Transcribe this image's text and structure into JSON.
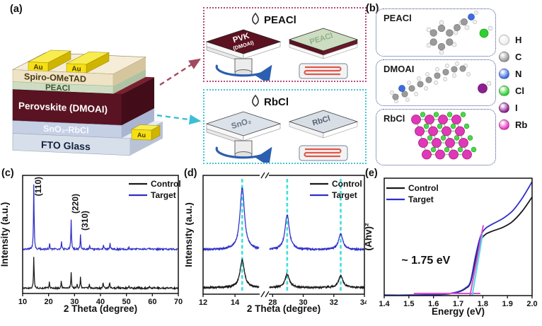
{
  "panel_a": {
    "label": "(a)",
    "device": {
      "au": "Au",
      "au_pad": "Au",
      "spiro": "Spiro-OMeTAD",
      "peacl": "PEACl",
      "perovskite": "Perovskite (DMOAI)",
      "sno2": "SnO₂-RbCl",
      "fto": "FTO Glass"
    },
    "top_process": {
      "drop": "PEACl",
      "substrate": "PVK",
      "substrate2": "(DMOAI)",
      "result": "PEACl"
    },
    "bottom_process": {
      "drop": "RbCl",
      "substrate": "SnO₂",
      "result": "RbCl"
    }
  },
  "panel_b": {
    "label": "(b)",
    "boxes": [
      {
        "title": "PEACl"
      },
      {
        "title": "DMOAI"
      },
      {
        "title": "RbCl"
      }
    ],
    "legend": [
      {
        "label": "H",
        "color": "#ededed"
      },
      {
        "label": "C",
        "color": "#979797"
      },
      {
        "label": "N",
        "color": "#3c6ce0"
      },
      {
        "label": "Cl",
        "color": "#2fd02f"
      },
      {
        "label": "I",
        "color": "#8d1f92"
      },
      {
        "label": "Rb",
        "color": "#e436bd"
      }
    ]
  },
  "chart_data": [
    {
      "id": "c",
      "panel_label": "(c)",
      "type": "line",
      "subtype": "xrd",
      "xlabel": "2 Theta (degree)",
      "ylabel": "Intensity (a.u.)",
      "xlim": [
        10,
        70
      ],
      "xticks": [
        10,
        20,
        30,
        40,
        50,
        60,
        70
      ],
      "legend": [
        "Control",
        "Target"
      ],
      "colors": {
        "Control": "#1a1a1a",
        "Target": "#2f2fc8"
      },
      "annotations": [
        {
          "text": "(110)",
          "two_theta": 14.3
        },
        {
          "text": "(220)",
          "two_theta": 28.7
        },
        {
          "text": "(310)",
          "two_theta": 32.3
        }
      ],
      "series": [
        {
          "name": "Control",
          "baseline": 0.045,
          "peaks": [
            [
              14.3,
              0.27
            ],
            [
              20.3,
              0.05
            ],
            [
              24.9,
              0.06
            ],
            [
              28.7,
              0.14
            ],
            [
              31.0,
              0.03
            ],
            [
              32.3,
              0.1
            ],
            [
              35.7,
              0.03
            ],
            [
              41.0,
              0.045
            ],
            [
              43.5,
              0.045
            ],
            [
              46.8,
              0.015
            ],
            [
              51.0,
              0.02
            ],
            [
              54.8,
              0.01
            ],
            [
              58.8,
              0.012
            ]
          ]
        },
        {
          "name": "Target",
          "baseline": 0.375,
          "peaks": [
            [
              14.3,
              0.56
            ],
            [
              20.4,
              0.05
            ],
            [
              25.0,
              0.06
            ],
            [
              28.7,
              0.25
            ],
            [
              32.3,
              0.12
            ],
            [
              35.8,
              0.03
            ],
            [
              41.2,
              0.04
            ],
            [
              43.7,
              0.05
            ],
            [
              51.0,
              0.02
            ],
            [
              58.8,
              0.01
            ]
          ]
        }
      ]
    },
    {
      "id": "d",
      "panel_label": "(d)",
      "type": "line",
      "subtype": "xrd",
      "axis_break": true,
      "xlabel": "2 Theta (degree)",
      "ylabel": "Intensity (a.u.)",
      "segments": [
        {
          "range": [
            12,
            15.5
          ],
          "ticks": [
            12,
            14
          ]
        },
        {
          "range": [
            27.8,
            34
          ],
          "ticks": [
            28,
            30,
            32,
            34
          ]
        }
      ],
      "legend": [
        "Control",
        "Target"
      ],
      "colors": {
        "Control": "#1a1a1a",
        "Target": "#2f2fc8"
      },
      "guide_lines": {
        "color": "#3fdede",
        "two_theta": [
          14.45,
          28.95,
          32.45
        ]
      },
      "series": [
        {
          "name": "Control",
          "baseline": 0.055,
          "peaks": [
            [
              14.45,
              0.23
            ],
            [
              28.95,
              0.115
            ],
            [
              32.45,
              0.1
            ]
          ]
        },
        {
          "name": "Target",
          "baseline": 0.375,
          "peaks": [
            [
              14.45,
              0.52
            ],
            [
              28.95,
              0.29
            ],
            [
              32.45,
              0.13
            ]
          ]
        }
      ]
    },
    {
      "id": "e",
      "panel_label": "(e)",
      "type": "line",
      "subtype": "tauc",
      "xlabel": "Energy (eV)",
      "ylabel": "(Ahv)²",
      "xlim": [
        1.4,
        2.0
      ],
      "xticks": [
        1.4,
        1.5,
        1.6,
        1.7,
        1.8,
        1.9,
        2.0
      ],
      "legend": [
        "Control",
        "Target"
      ],
      "colors": {
        "Control": "#1a1a1a",
        "Target": "#2f2fc8"
      },
      "annotation": {
        "text": "~ 1.75 eV",
        "x": 1.47,
        "y": 0.27
      },
      "bandgap_ev": 1.75,
      "guides": [
        {
          "x": [
            1.52,
            1.79
          ],
          "y": [
            0.018,
            0.018
          ],
          "color": "#d94fd0"
        },
        {
          "x": [
            1.748,
            1.802
          ],
          "y": [
            0,
            0.6
          ],
          "color": "#d94fd0"
        },
        {
          "x": [
            1.757,
            1.799
          ],
          "y": [
            0,
            0.52
          ],
          "color": "#52d8e0"
        }
      ],
      "series": [
        {
          "name": "Control",
          "points": [
            [
              1.4,
              0.004
            ],
            [
              1.5,
              0.004
            ],
            [
              1.58,
              0.006
            ],
            [
              1.65,
              0.012
            ],
            [
              1.7,
              0.03
            ],
            [
              1.73,
              0.06
            ],
            [
              1.75,
              0.11
            ],
            [
              1.77,
              0.3
            ],
            [
              1.79,
              0.46
            ],
            [
              1.81,
              0.52
            ],
            [
              1.84,
              0.55
            ],
            [
              1.88,
              0.58
            ],
            [
              1.92,
              0.63
            ],
            [
              1.96,
              0.72
            ],
            [
              2.0,
              0.84
            ]
          ]
        },
        {
          "name": "Target",
          "points": [
            [
              1.4,
              0.004
            ],
            [
              1.5,
              0.004
            ],
            [
              1.58,
              0.007
            ],
            [
              1.65,
              0.014
            ],
            [
              1.7,
              0.033
            ],
            [
              1.73,
              0.065
            ],
            [
              1.75,
              0.12
            ],
            [
              1.77,
              0.33
            ],
            [
              1.79,
              0.5
            ],
            [
              1.81,
              0.57
            ],
            [
              1.84,
              0.61
            ],
            [
              1.88,
              0.655
            ],
            [
              1.92,
              0.72
            ],
            [
              1.96,
              0.83
            ],
            [
              2.0,
              0.97
            ]
          ]
        }
      ]
    }
  ]
}
